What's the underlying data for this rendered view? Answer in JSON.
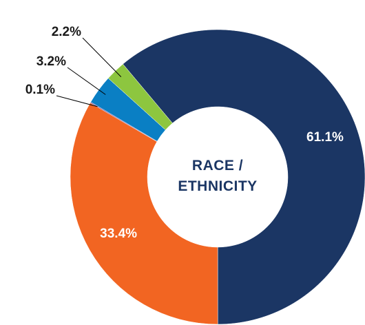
{
  "chart_data": {
    "type": "donut",
    "title": "RACE / ETHNICITY",
    "categories": [
      null,
      null,
      null,
      null,
      null
    ],
    "values": [
      61.1,
      33.4,
      0.1,
      3.2,
      2.2
    ],
    "value_labels": [
      "61.1%",
      "33.4%",
      "0.1%",
      "3.2%",
      "2.2%"
    ],
    "colors": [
      "#1b3664",
      "#f26522",
      "#6a3d8f",
      "#0a7fc4",
      "#8dc63f"
    ]
  }
}
